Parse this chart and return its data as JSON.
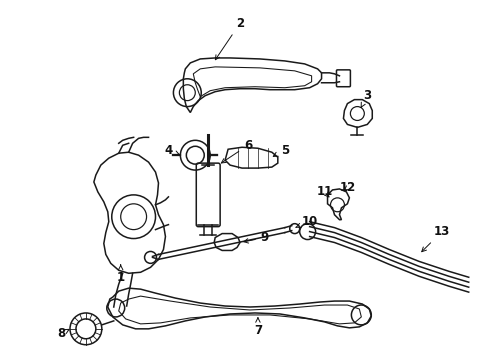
{
  "background_color": "#ffffff",
  "fig_width": 4.9,
  "fig_height": 3.6,
  "dpi": 100,
  "line_color": "#1a1a1a",
  "label_fontsize": 8.5,
  "label_fontweight": "bold"
}
